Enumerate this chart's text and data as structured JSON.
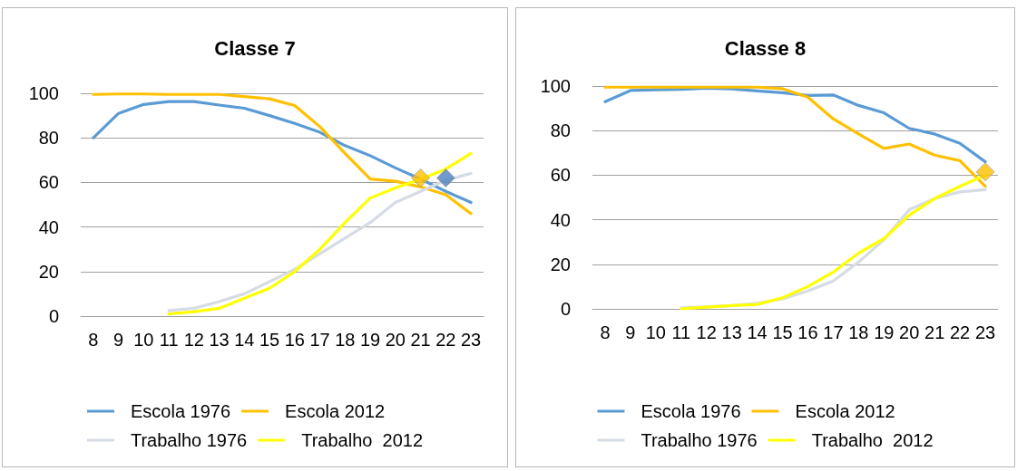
{
  "chart_data": [
    {
      "type": "line",
      "title": "Classe 7",
      "categories": [
        "8",
        "9",
        "10",
        "11",
        "12",
        "13",
        "14",
        "15",
        "16",
        "17",
        "18",
        "19",
        "20",
        "21",
        "22",
        "23"
      ],
      "ylim": [
        0,
        100
      ],
      "yticks": [
        0,
        20,
        40,
        60,
        80,
        100
      ],
      "grid": "y",
      "legend": "bottom",
      "marker": "none",
      "series": [
        {
          "name": "Escola 1976",
          "color": "#5b9bd5",
          "values": [
            80,
            91,
            95,
            96.3,
            96.3,
            94.7,
            93.3,
            90,
            86.5,
            82.5,
            76.5,
            72,
            66.5,
            61.5,
            56,
            51
          ]
        },
        {
          "name": "Escola 2012",
          "color": "#ffc000",
          "values": [
            99.5,
            99.7,
            99.7,
            99.5,
            99.5,
            99.5,
            98.5,
            97.5,
            94.5,
            85,
            73,
            61.5,
            60.5,
            58,
            54.5,
            46
          ]
        },
        {
          "name": "Trabalho 1976",
          "color": "#d6dce5",
          "values": [
            null,
            null,
            null,
            2.5,
            3.5,
            6.5,
            10,
            15.5,
            21,
            28,
            35,
            42,
            51,
            56,
            61,
            64
          ]
        },
        {
          "name": "Trabalho  2012",
          "color": "#ffff00",
          "values": [
            null,
            null,
            null,
            1,
            2,
            3.5,
            8,
            12.5,
            20,
            30,
            42,
            53,
            57.5,
            61.5,
            66,
            73
          ]
        },
        {
          "type": "scatter",
          "marker": "diamond",
          "color": "#ffc000",
          "x": [
            "21"
          ],
          "values": [
            62
          ]
        },
        {
          "type": "scatter",
          "marker": "diamond",
          "color": "#4f81bd",
          "x": [
            "22"
          ],
          "values": [
            62
          ]
        }
      ]
    },
    {
      "type": "line",
      "title": "Classe 8",
      "categories": [
        "8",
        "9",
        "10",
        "11",
        "12",
        "13",
        "14",
        "15",
        "16",
        "17",
        "18",
        "19",
        "20",
        "21",
        "22",
        "23"
      ],
      "ylim": [
        0,
        100
      ],
      "yticks": [
        0,
        20,
        40,
        60,
        80,
        100
      ],
      "grid": "y",
      "legend": "bottom",
      "marker": "none",
      "series": [
        {
          "name": "Escola 1976",
          "color": "#5b9bd5",
          "values": [
            93,
            98,
            98.3,
            98.5,
            99,
            98.7,
            97.8,
            97,
            95.8,
            96,
            91.3,
            88,
            81,
            78.5,
            74.3,
            66
          ]
        },
        {
          "name": "Escola 2012",
          "color": "#ffc000",
          "values": [
            99.5,
            99.5,
            99.5,
            99.5,
            99.5,
            99.5,
            99.5,
            98.8,
            95,
            85.3,
            78.5,
            72,
            74,
            69,
            66.5,
            55
          ]
        },
        {
          "name": "Trabalho 1976",
          "color": "#d6dce5",
          "values": [
            null,
            null,
            null,
            0.5,
            1,
            1.5,
            2.5,
            4.5,
            8,
            12.5,
            21,
            31,
            44.5,
            49.5,
            52.5,
            53.5
          ]
        },
        {
          "name": "Trabalho  2012",
          "color": "#ffff00",
          "values": [
            null,
            null,
            null,
            0,
            0.8,
            1.5,
            2,
            5,
            10,
            16.5,
            25,
            31.5,
            42,
            49.5,
            55,
            60
          ]
        },
        {
          "type": "scatter",
          "marker": "diamond",
          "color": "#ffc000",
          "x": [
            "23"
          ],
          "values": [
            61.5
          ]
        }
      ]
    }
  ]
}
